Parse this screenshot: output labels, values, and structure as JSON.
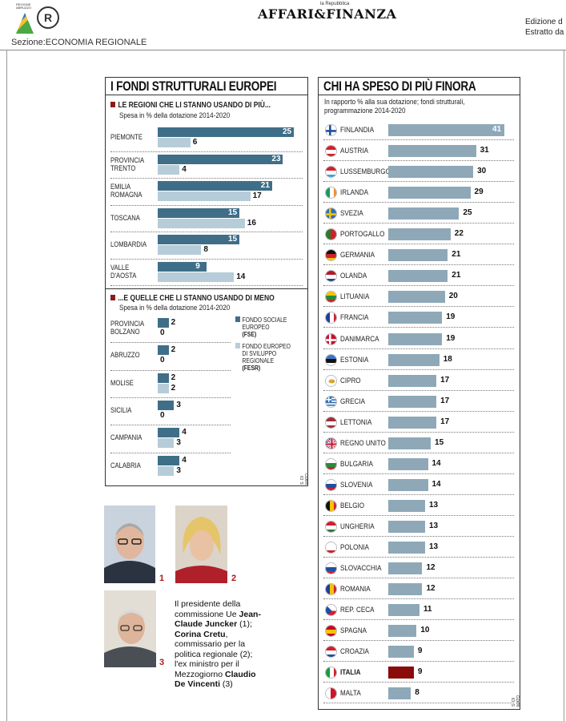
{
  "header": {
    "sezione": "Sezione:ECONOMIA REGIONALE",
    "publication_small": "la Repubblica",
    "publication": "AFFARI&FINANZA",
    "edizione": "Edizione d",
    "estratto": "Estratto da",
    "logo_text": "REGIONE ABRUZZO"
  },
  "left_box": {
    "title": "I FONDI STRUTTURALI EUROPEI",
    "section1_title": "LE REGIONI CHE LI STANNO USANDO DI PIÙ...",
    "section1_sub": "Spesa in % della dotazione 2014-2020",
    "section2_title": "...E QUELLE CHE LI STANNO USANDO DI MENO",
    "section2_sub": "Spesa in % della dotazione 2014-2020",
    "legend_fse": [
      "FONDO SOCIALE",
      "EUROPEO",
      "(FSE)"
    ],
    "legend_fesr": [
      "FONDO EUROPEO",
      "DI SVILUPPO",
      "REGIONALE",
      "(FESR)"
    ],
    "credit": "S. DI MATO"
  },
  "right_box": {
    "title": "CHI HA SPESO DI PIÙ FINORA",
    "sub1": "In rapporto % alla sua dotazione; fondi strutturali,",
    "sub2": "programmazione 2014-2020",
    "credit": "S. DI MATO"
  },
  "colors": {
    "fse": "#3f6e88",
    "fesr": "#b7ccd9",
    "country": "#8ea8b8",
    "highlight": "#8b0a0a",
    "accent": "#8b1a1a"
  },
  "chart_data": [
    {
      "type": "bar",
      "title": "LE REGIONI CHE LI STANNO USANDO DI PIÙ...",
      "categories": [
        [
          "PIEMONTE"
        ],
        [
          "PROVINCIA",
          "TRENTO"
        ],
        [
          "EMILIA",
          "ROMAGNA"
        ],
        [
          "TOSCANA"
        ],
        [
          "LOMBARDIA"
        ],
        [
          "VALLE",
          "D'AOSTA"
        ]
      ],
      "series": [
        {
          "name": "FONDO SOCIALE EUROPEO (FSE)",
          "values": [
            25,
            23,
            21,
            15,
            15,
            9
          ]
        },
        {
          "name": "FONDO EUROPEO DI SVILUPPO REGIONALE (FESR)",
          "values": [
            6,
            4,
            17,
            16,
            8,
            14
          ]
        }
      ]
    },
    {
      "type": "bar",
      "title": "...E QUELLE CHE LI STANNO USANDO DI MENO",
      "categories": [
        [
          "PROVINCIA",
          "BOLZANO"
        ],
        [
          "ABRUZZO"
        ],
        [
          "MOLISE"
        ],
        [
          "SICILIA"
        ],
        [
          "CAMPANIA"
        ],
        [
          "CALABRIA"
        ]
      ],
      "series": [
        {
          "name": "FONDO SOCIALE EUROPEO (FSE)",
          "values": [
            2,
            2,
            2,
            3,
            4,
            4
          ]
        },
        {
          "name": "FONDO EUROPEO DI SVILUPPO REGIONALE (FESR)",
          "values": [
            0,
            0,
            2,
            0,
            3,
            3
          ]
        }
      ]
    },
    {
      "type": "bar",
      "title": "CHI HA SPESO DI PIÙ FINORA",
      "categories": [
        "FINLANDIA",
        "AUSTRIA",
        "LUSSEMBURGO",
        "IRLANDA",
        "SVEZIA",
        "PORTOGALLO",
        "GERMANIA",
        "OLANDA",
        "LITUANIA",
        "FRANCIA",
        "DANIMARCA",
        "ESTONIA",
        "CIPRO",
        "GRECIA",
        "LETTONIA",
        "REGNO UNITO",
        "BULGARIA",
        "SLOVENIA",
        "BELGIO",
        "UNGHERIA",
        "POLONIA",
        "SLOVACCHIA",
        "ROMANIA",
        "REP. CECA",
        "SPAGNA",
        "CROAZIA",
        "ITALIA",
        "MALTA"
      ],
      "values": [
        41,
        31,
        30,
        29,
        25,
        22,
        21,
        21,
        20,
        19,
        19,
        18,
        17,
        17,
        17,
        15,
        14,
        14,
        13,
        13,
        13,
        12,
        12,
        11,
        10,
        9,
        9,
        8
      ],
      "highlight": "ITALIA",
      "flags": [
        {
          "type": "h",
          "c": [
            "#fff",
            "#fff"
          ],
          "cross": "#1e4fa3"
        },
        {
          "type": "h",
          "c": [
            "#d0202e",
            "#fff",
            "#d0202e"
          ]
        },
        {
          "type": "h",
          "c": [
            "#d0202e",
            "#fff",
            "#3aa3dc"
          ]
        },
        {
          "type": "v",
          "c": [
            "#169b62",
            "#fff",
            "#f28c28"
          ]
        },
        {
          "type": "h",
          "c": [
            "#2f6fb5",
            "#2f6fb5"
          ],
          "cross": "#f4c400"
        },
        {
          "type": "v2",
          "c": [
            "#2a7a2a",
            "#d0202e"
          ]
        },
        {
          "type": "h",
          "c": [
            "#111",
            "#d0202e",
            "#f4c400"
          ]
        },
        {
          "type": "h",
          "c": [
            "#ae1c28",
            "#fff",
            "#21468b"
          ]
        },
        {
          "type": "h",
          "c": [
            "#f4c400",
            "#2a8a3a",
            "#c1272d"
          ]
        },
        {
          "type": "v",
          "c": [
            "#1e3f9a",
            "#fff",
            "#d0202e"
          ]
        },
        {
          "type": "h",
          "c": [
            "#c8102e",
            "#c8102e"
          ],
          "cross": "#fff"
        },
        {
          "type": "h",
          "c": [
            "#3a75c4",
            "#111",
            "#fff"
          ]
        },
        {
          "type": "h",
          "c": [
            "#fff",
            "#fff"
          ],
          "dot": "#d9a534"
        },
        {
          "type": "stripes",
          "c": [
            "#2f6fb5",
            "#fff"
          ]
        },
        {
          "type": "h",
          "c": [
            "#9e3039",
            "#fff",
            "#9e3039"
          ]
        },
        {
          "type": "uk",
          "c": [
            "#1f3b87",
            "#c8102e",
            "#fff"
          ]
        },
        {
          "type": "h",
          "c": [
            "#fff",
            "#2a8a3a",
            "#d0202e"
          ]
        },
        {
          "type": "h",
          "c": [
            "#fff",
            "#1e4fa3",
            "#d0202e"
          ]
        },
        {
          "type": "v",
          "c": [
            "#111",
            "#f4c400",
            "#d0202e"
          ]
        },
        {
          "type": "h",
          "c": [
            "#d0202e",
            "#fff",
            "#2a7a3a"
          ]
        },
        {
          "type": "h",
          "c": [
            "#fff",
            "#fff",
            "#d0202e"
          ]
        },
        {
          "type": "h",
          "c": [
            "#fff",
            "#1e4fa3",
            "#d0202e"
          ]
        },
        {
          "type": "v",
          "c": [
            "#1e3f9a",
            "#f4c400",
            "#d0202e"
          ]
        },
        {
          "type": "cz",
          "c": [
            "#fff",
            "#d0202e",
            "#1e4fa3"
          ]
        },
        {
          "type": "h",
          "c": [
            "#c60b1e",
            "#f4c400",
            "#c60b1e"
          ]
        },
        {
          "type": "h",
          "c": [
            "#d0202e",
            "#fff",
            "#1e4fa3"
          ]
        },
        {
          "type": "v",
          "c": [
            "#169b42",
            "#fff",
            "#d0202e"
          ]
        },
        {
          "type": "v2",
          "c": [
            "#fff",
            "#cf142b"
          ]
        }
      ]
    }
  ],
  "caption": {
    "parts": [
      {
        "t": "Il presidente della commissione Ue ",
        "b": false
      },
      {
        "t": "Jean-Claude Juncker",
        "b": true
      },
      {
        "t": " (1); ",
        "b": false
      },
      {
        "t": "Corina Cretu",
        "b": true
      },
      {
        "t": ", commissario per la politica regionale (2); l'ex ministro per il Mezzogiorno ",
        "b": false
      },
      {
        "t": "Claudio De Vincenti",
        "b": true
      },
      {
        "t": " (3)",
        "b": false
      }
    ]
  },
  "photos": {
    "n1": "1",
    "n2": "2",
    "n3": "3"
  }
}
